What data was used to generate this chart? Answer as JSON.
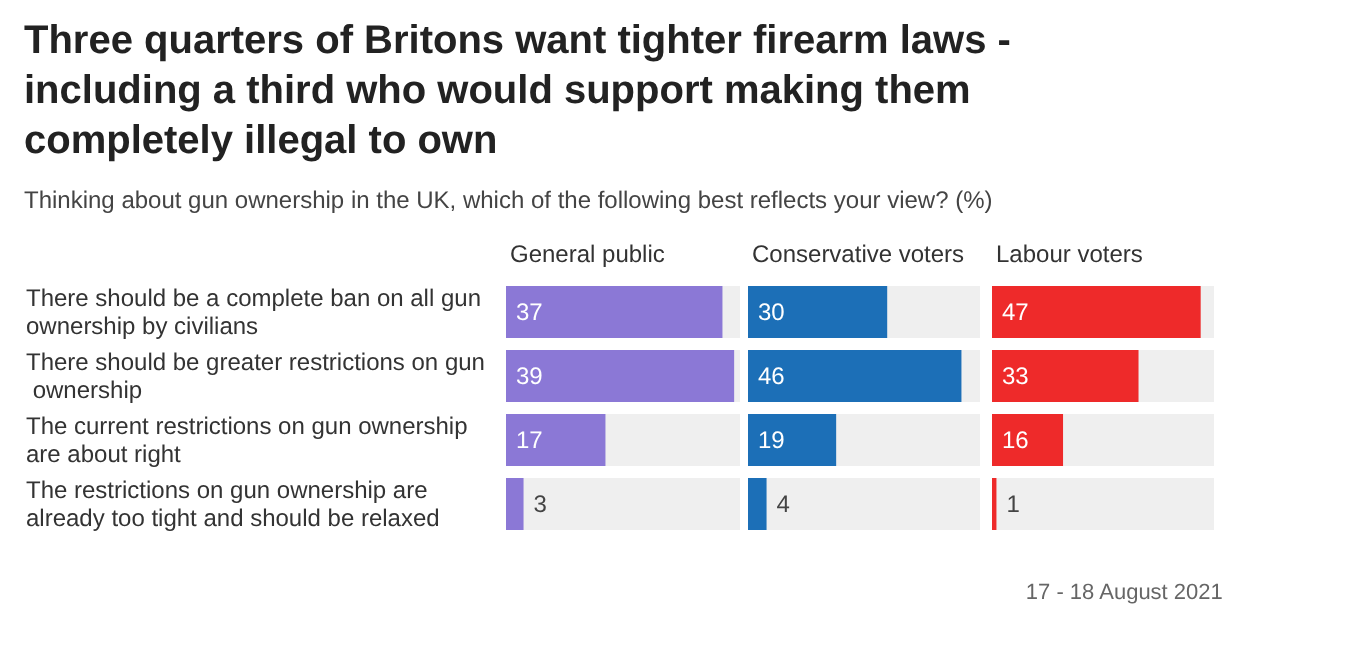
{
  "chart_data": [
    {
      "type": "bar",
      "orientation": "horizontal",
      "title": "Three quarters of Britons want tighter firearm laws - including a third who would support making them completely illegal to own",
      "subtitle": "Thinking about gun ownership in the UK, which of the following best reflects your view? (%)",
      "legend_title": "General public",
      "categories": [
        "There should be a complete ban on all gun ownership by civilians",
        "There should be greater restrictions on gun ownership",
        "The current restrictions on gun ownership are about right",
        "The restrictions on gun ownership are already too tight and should be relaxed"
      ],
      "values": [
        37,
        39,
        17,
        3
      ],
      "color": "#8b78d6",
      "data_labels": true,
      "annotations": [
        "17 - 18 August 2021"
      ]
    },
    {
      "type": "bar",
      "orientation": "horizontal",
      "legend_title": "Conservative voters",
      "categories": [
        "There should be a complete ban on all gun ownership by civilians",
        "There should be greater restrictions on gun ownership",
        "The current restrictions on gun ownership are about right",
        "The restrictions on gun ownership are already too tight and should be relaxed"
      ],
      "values": [
        30,
        46,
        19,
        4
      ],
      "color": "#1c6fb7",
      "data_labels": true,
      "tick_labels": false
    },
    {
      "type": "bar",
      "orientation": "horizontal",
      "legend_title": "Labour voters",
      "categories": [
        "There should be a complete ban on all gun ownership by civilians",
        "There should be greater restrictions on gun ownership",
        "The current restrictions on gun ownership are about right",
        "The restrictions on gun ownership are already too tight and should be relaxed"
      ],
      "values": [
        47,
        33,
        16,
        1
      ],
      "color": "#ee2a2a",
      "data_labels": true,
      "tick_labels": false
    }
  ]
}
